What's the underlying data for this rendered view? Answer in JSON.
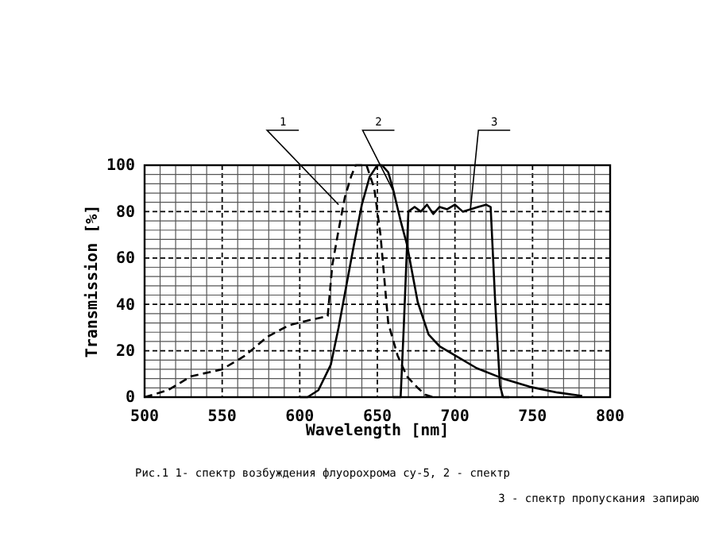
{
  "chart_data": {
    "type": "line",
    "xlabel": "Wavelength [nm]",
    "ylabel": "Transmission [%]",
    "xlim": [
      500,
      800
    ],
    "xticks": [
      500,
      550,
      600,
      650,
      700,
      750,
      800
    ],
    "ylim": [
      0,
      100
    ],
    "yticks": [
      0,
      20,
      40,
      60,
      80,
      100
    ],
    "grid": true,
    "marker": "none",
    "series": [
      {
        "color": "#000000",
        "line_style": "dashed",
        "x": [
          500,
          515,
          530,
          550,
          565,
          579,
          593,
          605,
          615,
          618,
          621,
          625,
          629,
          633,
          636,
          640,
          643,
          648,
          652,
          657,
          663,
          669,
          676,
          681,
          686
        ],
        "values": [
          0,
          3,
          9,
          12,
          18,
          26,
          31,
          33,
          34.5,
          35,
          57,
          72,
          86,
          95,
          100,
          100,
          100,
          90,
          70,
          32,
          18,
          9,
          4,
          1,
          0
        ]
      },
      {
        "color": "#000000",
        "line_style": "solid",
        "x": [
          600,
          605,
          612,
          620,
          625,
          630,
          635,
          640,
          645,
          650,
          653,
          657,
          660,
          665,
          669,
          676,
          683,
          690,
          700,
          714,
          731,
          748,
          766,
          782
        ],
        "values": [
          0,
          0,
          3,
          14,
          30,
          48,
          66,
          83,
          95,
          100,
          100,
          97,
          90,
          76,
          66,
          41,
          27,
          22,
          18,
          12.5,
          8,
          4.5,
          2,
          0.5
        ]
      },
      {
        "color": "#000000",
        "line_style": "solid",
        "x": [
          660,
          665,
          667,
          670,
          674,
          678,
          682,
          686,
          690,
          695,
          700,
          705,
          710,
          715,
          720,
          723,
          726,
          729,
          731,
          735
        ],
        "values": [
          0,
          0,
          30,
          80,
          82,
          80,
          83,
          79,
          82,
          81,
          83,
          80,
          81,
          82,
          83,
          82,
          40,
          5,
          0,
          0
        ]
      }
    ],
    "annotations": [
      {
        "text": "1",
        "x": 625,
        "y": 83
      },
      {
        "text": "2",
        "x": 661,
        "y": 88
      },
      {
        "text": "3",
        "x": 710,
        "y": 81
      },
      "Рис.1   1- спектр возбуждения  флуорохрома  су-5,  2 - спектр",
      "3 - спектр пропускания  запираю"
    ]
  }
}
